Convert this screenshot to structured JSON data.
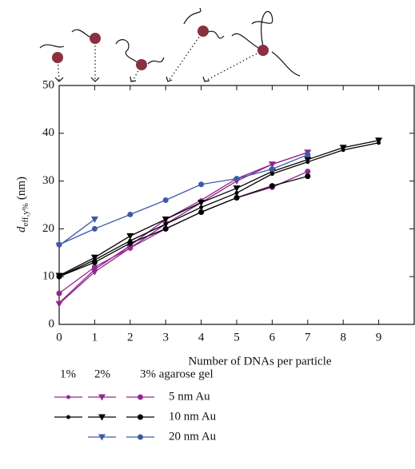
{
  "chart_data": {
    "type": "line",
    "x_label": "Number of DNAs per particle",
    "y_label": "d",
    "y_label_sub": "eff,y%",
    "y_label_unit": "(nm)",
    "x": [
      0,
      1,
      2,
      3,
      4,
      5,
      6,
      7,
      8,
      9
    ],
    "xlim": [
      0,
      10
    ],
    "xticks": [
      0,
      1,
      2,
      3,
      4,
      5,
      6,
      7,
      8,
      9
    ],
    "ylim": [
      0,
      50
    ],
    "yticks": [
      0,
      10,
      20,
      30,
      40,
      50
    ],
    "legend_columns": [
      "1%",
      "2%",
      "3% agarose gel"
    ],
    "markers": [
      "dot",
      "triangle",
      "circle"
    ],
    "series": [
      {
        "name": "5 nm Au",
        "color": "#93278f",
        "runs": [
          {
            "values": [
              4.5,
              11.5,
              16.5,
              22,
              26,
              30.5,
              33.5,
              36,
              null,
              null
            ]
          },
          {
            "values": [
              4.3,
              11,
              16,
              21,
              25.5,
              30,
              33.5,
              36,
              null,
              null
            ]
          },
          {
            "values": [
              6.5,
              12,
              16,
              20,
              23.5,
              26.5,
              28.7,
              32,
              null,
              null
            ]
          }
        ]
      },
      {
        "name": "10 nm Au",
        "color": "#000000",
        "runs": [
          {
            "values": [
              10,
              13.5,
              17.5,
              21,
              24.5,
              27.5,
              31.5,
              34,
              36.5,
              38
            ]
          },
          {
            "values": [
              10.2,
              14,
              18.5,
              22,
              25.5,
              28.5,
              32,
              34.5,
              37,
              38.5
            ]
          },
          {
            "values": [
              10,
              13,
              17,
              20,
              23.5,
              26.5,
              29,
              31,
              null,
              null
            ]
          }
        ]
      },
      {
        "name": "20 nm Au",
        "color": "#3c5aa8",
        "runs": [
          null,
          {
            "values": [
              16.5,
              22,
              null,
              null,
              null,
              null,
              null,
              null,
              null,
              null
            ]
          },
          {
            "values": [
              16.7,
              20,
              23,
              26,
              29.3,
              30.5,
              32.5,
              35.5,
              null,
              null
            ]
          }
        ]
      }
    ]
  }
}
